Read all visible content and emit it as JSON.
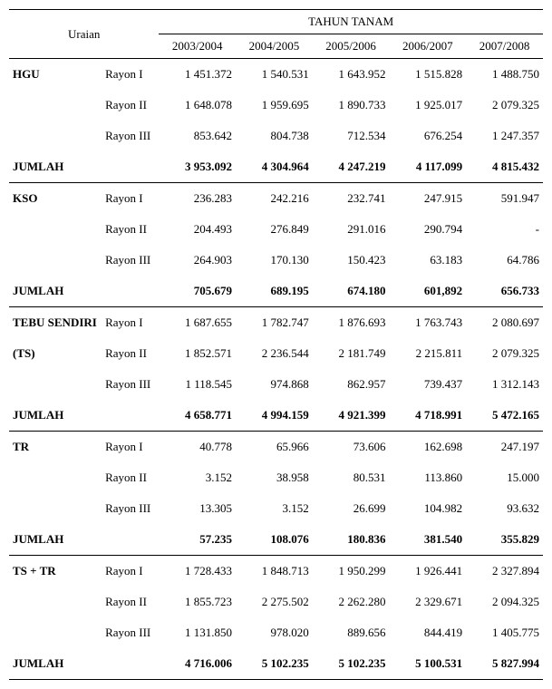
{
  "header": {
    "uraian": "Uraian",
    "tahun": "TAHUN TANAM",
    "years": [
      "2003/2004",
      "2004/2005",
      "2005/2006",
      "2006/2007",
      "2007/2008"
    ]
  },
  "rayon_labels": [
    "Rayon I",
    "Rayon II",
    "Rayon III"
  ],
  "jumlah_label": "JUMLAH",
  "sections": [
    {
      "name": "HGU",
      "rows": [
        [
          "1 451.372",
          "1 540.531",
          "1 643.952",
          "1 515.828",
          "1 488.750"
        ],
        [
          "1 648.078",
          "1 959.695",
          "1 890.733",
          "1 925.017",
          "2 079.325"
        ],
        [
          "853.642",
          "804.738",
          "712.534",
          "676.254",
          "1 247.357"
        ]
      ],
      "jumlah": [
        "3 953.092",
        "4 304.964",
        "4 247.219",
        "4 117.099",
        "4 815.432"
      ]
    },
    {
      "name": "KSO",
      "rows": [
        [
          "236.283",
          "242.216",
          "232.741",
          "247.915",
          "591.947"
        ],
        [
          "204.493",
          "276.849",
          "291.016",
          "290.794",
          "-"
        ],
        [
          "264.903",
          "170.130",
          "150.423",
          "63.183",
          "64.786"
        ]
      ],
      "jumlah": [
        "705.679",
        "689.195",
        "674.180",
        "601,892",
        "656.733"
      ]
    },
    {
      "name": "TEBU SENDIRI (TS)",
      "name_line1": "TEBU SENDIRI",
      "name_line2": "(TS)",
      "rows": [
        [
          "1 687.655",
          "1 782.747",
          "1 876.693",
          "1 763.743",
          "2 080.697"
        ],
        [
          "1 852.571",
          "2 236.544",
          "2 181.749",
          "2 215.811",
          "2 079.325"
        ],
        [
          "1 118.545",
          "974.868",
          "862.957",
          "739.437",
          "1 312.143"
        ]
      ],
      "jumlah": [
        "4 658.771",
        "4 994.159",
        "4 921.399",
        "4 718.991",
        "5 472.165"
      ]
    },
    {
      "name": "TR",
      "rows": [
        [
          "40.778",
          "65.966",
          "73.606",
          "162.698",
          "247.197"
        ],
        [
          "3.152",
          "38.958",
          "80.531",
          "113.860",
          "15.000"
        ],
        [
          "13.305",
          "3.152",
          "26.699",
          "104.982",
          "93.632"
        ]
      ],
      "jumlah": [
        "57.235",
        "108.076",
        "180.836",
        "381.540",
        "355.829"
      ]
    },
    {
      "name": " TS + TR",
      "rows": [
        [
          "1 728.433",
          "1 848.713",
          "1 950.299",
          "1 926.441",
          "2 327.894"
        ],
        [
          "1 855.723",
          "2 275.502",
          "2 262.280",
          "2 329.671",
          "2 094.325"
        ],
        [
          "1 131.850",
          "978.020",
          "889.656",
          "844.419",
          "1 405.775"
        ]
      ],
      "jumlah": [
        "4 716.006",
        "5 102.235",
        "5 102.235",
        "5 100.531",
        "5 827.994"
      ]
    }
  ]
}
